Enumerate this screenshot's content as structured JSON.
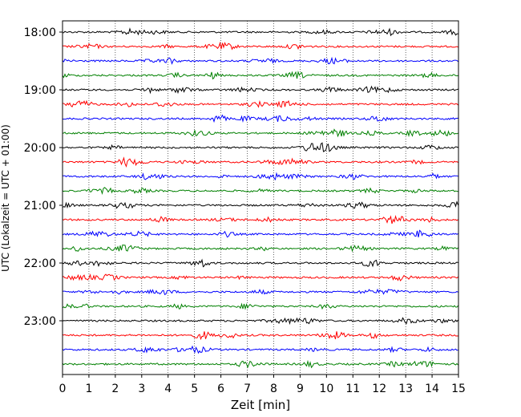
{
  "chart_data": {
    "type": "line",
    "title": "",
    "xlabel": "Zeit  [min]",
    "ylabel": "UTC (Lokalzeit = UTC + 01:00)",
    "xlim": [
      0,
      15
    ],
    "x_ticks": [
      0,
      1,
      2,
      3,
      4,
      5,
      6,
      7,
      8,
      9,
      10,
      11,
      12,
      13,
      14,
      15
    ],
    "x_tick_labels": [
      "0",
      "1",
      "2",
      "3",
      "4",
      "5",
      "6",
      "7",
      "8",
      "9",
      "10",
      "11",
      "12",
      "13",
      "14",
      "15"
    ],
    "y_tick_labels": [
      "18:00",
      "19:00",
      "20:00",
      "21:00",
      "22:00",
      "23:00"
    ],
    "trace_start_times": [
      "18:00",
      "18:15",
      "18:30",
      "18:45",
      "19:00",
      "19:15",
      "19:30",
      "19:45",
      "20:00",
      "20:15",
      "20:30",
      "20:45",
      "21:00",
      "21:15",
      "21:30",
      "21:45",
      "22:00",
      "22:15",
      "22:30",
      "22:45",
      "23:00",
      "23:15",
      "23:30",
      "23:45"
    ],
    "trace_minutes_per_line": 15,
    "series_colors": [
      "#000000",
      "#ff0000",
      "#0000ff",
      "#008000"
    ],
    "vertical_grid": true,
    "grid_style": "dotted",
    "legend": "none"
  }
}
